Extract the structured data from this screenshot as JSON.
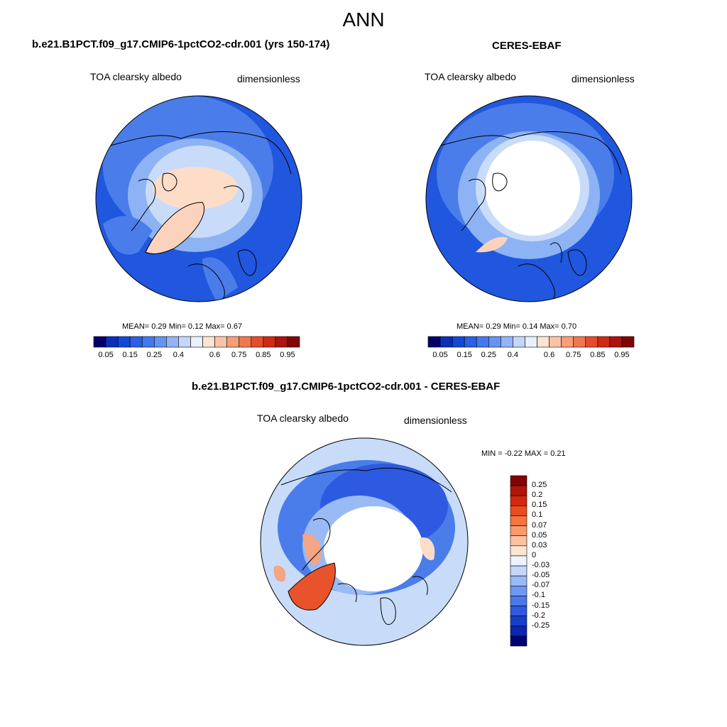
{
  "figure": {
    "title": "ANN"
  },
  "panels": [
    {
      "id": "model",
      "title": "b.e21.B1PCT.f09_g17.CMIP6-1pctCO2-cdr.001 (yrs 150-174)",
      "left_label": "TOA clearsky albedo",
      "right_label": "dimensionless",
      "stats": "MEAN=   0.29  Min=    0.12  Max=    0.67",
      "colors": [
        "#03006b",
        "#0a2fbb",
        "#1447d8",
        "#2a5fe6",
        "#4478ee",
        "#6692f3",
        "#92b4f6",
        "#c3d7fa",
        "#e8f0fd",
        "#fde3d2",
        "#fbc3a6",
        "#f89d78",
        "#f2764f",
        "#e54c2c",
        "#cf2a15",
        "#ad1410",
        "#810404"
      ],
      "ticks": [
        "0.05",
        "0.15",
        "0.25",
        "0.4",
        "0.6",
        "0.75",
        "0.85",
        "0.95"
      ]
    },
    {
      "id": "obs",
      "title": "CERES-EBAF",
      "left_label": "TOA clearsky albedo",
      "right_label": "dimensionless",
      "stats": "MEAN=   0.29  Min=    0.14  Max=    0.70",
      "colors": [
        "#03006b",
        "#0a2fbb",
        "#1447d8",
        "#2a5fe6",
        "#4478ee",
        "#6692f3",
        "#92b4f6",
        "#c3d7fa",
        "#e8f0fd",
        "#fde3d2",
        "#fbc3a6",
        "#f89d78",
        "#f2764f",
        "#e54c2c",
        "#cf2a15",
        "#ad1410",
        "#810404"
      ],
      "ticks": [
        "0.05",
        "0.15",
        "0.25",
        "0.4",
        "0.6",
        "0.75",
        "0.85",
        "0.95"
      ]
    },
    {
      "id": "diff",
      "title": "b.e21.B1PCT.f09_g17.CMIP6-1pctCO2-cdr.001 - CERES-EBAF",
      "left_label": "TOA clearsky albedo",
      "right_label": "dimensionless",
      "stats": "MIN =  -0.22 MAX =   0.21",
      "colors": [
        "#810404",
        "#b01608",
        "#d3280f",
        "#ec4b1d",
        "#f5743f",
        "#f99a6c",
        "#fbc29d",
        "#fde3d0",
        "#eef4fe",
        "#c4d7fa",
        "#9abaf6",
        "#6e98f1",
        "#4a79ea",
        "#2d5ae0",
        "#173fcc",
        "#0b27ad",
        "#020473"
      ],
      "ticks": [
        "0.25",
        "0.2",
        "0.15",
        "0.1",
        "0.07",
        "0.05",
        "0.03",
        "0",
        "-0.03",
        "-0.05",
        "-0.07",
        "-0.1",
        "-0.15",
        "-0.2",
        "-0.25"
      ]
    }
  ],
  "map_colors": {
    "blue_dark": "#2057de",
    "blue_mid": "#4a7de9",
    "blue_light": "#8db3f4",
    "blue_pale": "#c8dcfa",
    "peach": "#fddcc8",
    "salmon": "#f4a583",
    "orange_red": "#e9532b",
    "land_line": "#000000"
  }
}
